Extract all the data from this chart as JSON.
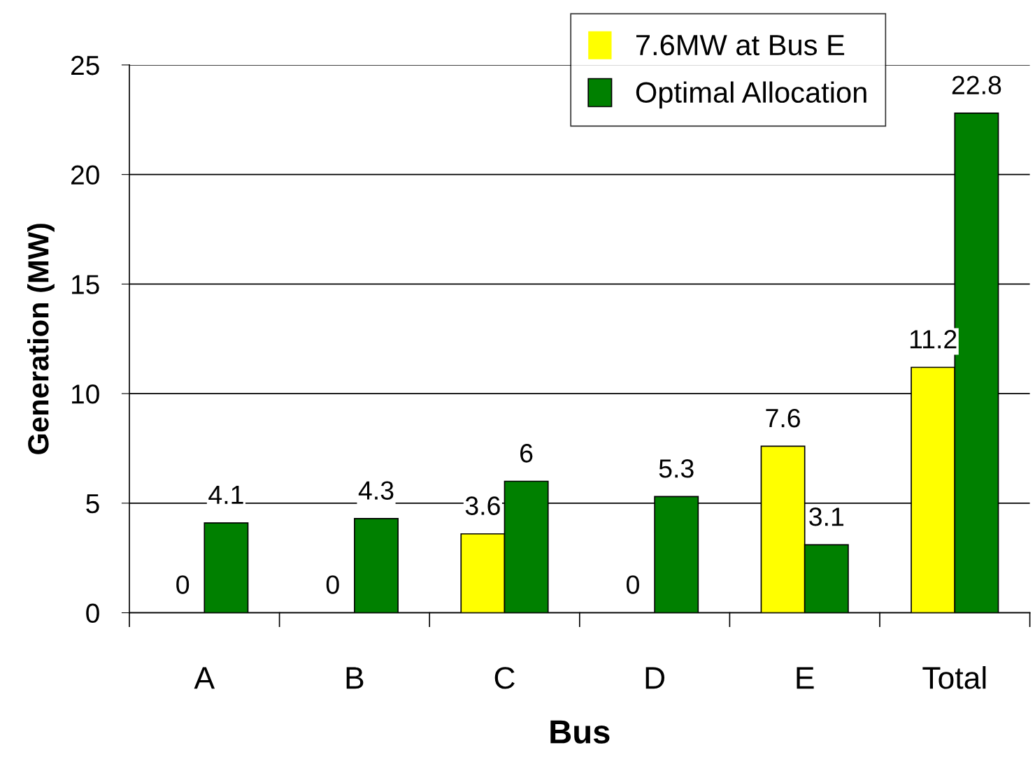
{
  "chart_data": {
    "type": "bar",
    "xlabel": "Bus",
    "ylabel": "Generation (MW)",
    "categories": [
      "A",
      "B",
      "C",
      "D",
      "E",
      "Total"
    ],
    "series": [
      {
        "name": "7.6MW at Bus E",
        "color": "#ffff00",
        "values": [
          0,
          0,
          3.6,
          0,
          7.6,
          11.2
        ]
      },
      {
        "name": "Optimal Allocation",
        "color": "#008000",
        "values": [
          4.1,
          4.3,
          6,
          5.3,
          3.1,
          22.8
        ]
      }
    ],
    "ylim": [
      0,
      25
    ],
    "yticks": [
      0,
      5,
      10,
      15,
      20,
      25
    ],
    "grid": "y",
    "legend": "top right",
    "data_labels": true
  }
}
